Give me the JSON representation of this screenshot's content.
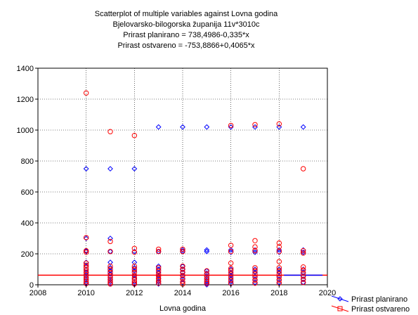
{
  "chart_data": {
    "type": "scatter",
    "title": "Scatterplot of multiple variables against Lovna godina",
    "subtitle": "Bjelovarsko-bilogorska županija 11v*3010c",
    "equations": [
      "Prirast planirano = 738,4986-0,335*x",
      "Prirast ostvareno = -753,8866+0,4065*x"
    ],
    "xlabel": "Lovna godina",
    "ylabel": "",
    "xlim": [
      2008,
      2020
    ],
    "ylim": [
      0,
      1400
    ],
    "x_ticks": [
      2008,
      2010,
      2012,
      2014,
      2016,
      2018,
      2020
    ],
    "y_ticks": [
      0,
      200,
      400,
      600,
      800,
      1000,
      1200,
      1400
    ],
    "grid": true,
    "legend_position": "bottom-right outside",
    "series": [
      {
        "name": "Prirast planirano",
        "color": "#0000ff",
        "marker": "diamond",
        "points": [
          [
            2010,
            750
          ],
          [
            2010,
            300
          ],
          [
            2010,
            220
          ],
          [
            2010,
            215
          ],
          [
            2010,
            145
          ],
          [
            2010,
            120
          ],
          [
            2010,
            100
          ],
          [
            2010,
            80
          ],
          [
            2010,
            60
          ],
          [
            2010,
            45
          ],
          [
            2010,
            30
          ],
          [
            2010,
            15
          ],
          [
            2010,
            5
          ],
          [
            2011,
            750
          ],
          [
            2011,
            300
          ],
          [
            2011,
            215
          ],
          [
            2011,
            145
          ],
          [
            2011,
            110
          ],
          [
            2011,
            90
          ],
          [
            2011,
            70
          ],
          [
            2011,
            50
          ],
          [
            2011,
            35
          ],
          [
            2011,
            20
          ],
          [
            2011,
            8
          ],
          [
            2012,
            750
          ],
          [
            2012,
            215
          ],
          [
            2012,
            145
          ],
          [
            2012,
            110
          ],
          [
            2012,
            90
          ],
          [
            2012,
            60
          ],
          [
            2012,
            40
          ],
          [
            2012,
            20
          ],
          [
            2012,
            5
          ],
          [
            2013,
            1020
          ],
          [
            2013,
            215
          ],
          [
            2013,
            120
          ],
          [
            2013,
            100
          ],
          [
            2013,
            80
          ],
          [
            2013,
            60
          ],
          [
            2013,
            40
          ],
          [
            2013,
            20
          ],
          [
            2013,
            5
          ],
          [
            2014,
            1020
          ],
          [
            2014,
            225
          ],
          [
            2014,
            215
          ],
          [
            2014,
            120
          ],
          [
            2014,
            100
          ],
          [
            2014,
            80
          ],
          [
            2014,
            55
          ],
          [
            2014,
            35
          ],
          [
            2014,
            15
          ],
          [
            2015,
            1020
          ],
          [
            2015,
            225
          ],
          [
            2015,
            215
          ],
          [
            2015,
            90
          ],
          [
            2015,
            75
          ],
          [
            2015,
            55
          ],
          [
            2015,
            40
          ],
          [
            2015,
            25
          ],
          [
            2015,
            10
          ],
          [
            2015,
            0
          ],
          [
            2016,
            1020
          ],
          [
            2016,
            225
          ],
          [
            2016,
            210
          ],
          [
            2016,
            100
          ],
          [
            2016,
            80
          ],
          [
            2016,
            60
          ],
          [
            2016,
            40
          ],
          [
            2016,
            20
          ],
          [
            2016,
            5
          ],
          [
            2017,
            1020
          ],
          [
            2017,
            225
          ],
          [
            2017,
            210
          ],
          [
            2017,
            100
          ],
          [
            2017,
            80
          ],
          [
            2017,
            55
          ],
          [
            2017,
            35
          ],
          [
            2017,
            15
          ],
          [
            2018,
            1020
          ],
          [
            2018,
            225
          ],
          [
            2018,
            210
          ],
          [
            2018,
            100
          ],
          [
            2018,
            80
          ],
          [
            2018,
            55
          ],
          [
            2018,
            35
          ],
          [
            2018,
            15
          ],
          [
            2019,
            1020
          ],
          [
            2019,
            225
          ],
          [
            2019,
            210
          ],
          [
            2019,
            100
          ],
          [
            2019,
            80
          ],
          [
            2019,
            55
          ],
          [
            2019,
            35
          ],
          [
            2019,
            15
          ]
        ],
        "fit_line": [
          [
            2018.2,
            62
          ],
          [
            2019.8,
            62
          ]
        ]
      },
      {
        "name": "Prirast ostvareno",
        "color": "#ff0000",
        "marker": "circle",
        "points": [
          [
            2010,
            1240
          ],
          [
            2010,
            305
          ],
          [
            2010,
            220
          ],
          [
            2010,
            210
          ],
          [
            2010,
            140
          ],
          [
            2010,
            125
          ],
          [
            2010,
            110
          ],
          [
            2010,
            95
          ],
          [
            2010,
            80
          ],
          [
            2010,
            65
          ],
          [
            2010,
            50
          ],
          [
            2010,
            35
          ],
          [
            2010,
            20
          ],
          [
            2010,
            8
          ],
          [
            2011,
            990
          ],
          [
            2011,
            280
          ],
          [
            2011,
            215
          ],
          [
            2011,
            120
          ],
          [
            2011,
            100
          ],
          [
            2011,
            80
          ],
          [
            2011,
            60
          ],
          [
            2011,
            45
          ],
          [
            2011,
            30
          ],
          [
            2011,
            15
          ],
          [
            2011,
            5
          ],
          [
            2012,
            965
          ],
          [
            2012,
            235
          ],
          [
            2012,
            210
          ],
          [
            2012,
            120
          ],
          [
            2012,
            100
          ],
          [
            2012,
            80
          ],
          [
            2012,
            60
          ],
          [
            2012,
            45
          ],
          [
            2012,
            30
          ],
          [
            2012,
            15
          ],
          [
            2012,
            5
          ],
          [
            2013,
            230
          ],
          [
            2013,
            215
          ],
          [
            2013,
            110
          ],
          [
            2013,
            90
          ],
          [
            2013,
            70
          ],
          [
            2013,
            55
          ],
          [
            2013,
            40
          ],
          [
            2013,
            25
          ],
          [
            2013,
            10
          ],
          [
            2014,
            230
          ],
          [
            2014,
            215
          ],
          [
            2014,
            120
          ],
          [
            2014,
            100
          ],
          [
            2014,
            80
          ],
          [
            2014,
            60
          ],
          [
            2014,
            40
          ],
          [
            2014,
            20
          ],
          [
            2014,
            5
          ],
          [
            2015,
            90
          ],
          [
            2015,
            70
          ],
          [
            2015,
            50
          ],
          [
            2015,
            35
          ],
          [
            2015,
            20
          ],
          [
            2015,
            8
          ],
          [
            2016,
            1030
          ],
          [
            2016,
            255
          ],
          [
            2016,
            215
          ],
          [
            2016,
            140
          ],
          [
            2016,
            105
          ],
          [
            2016,
            90
          ],
          [
            2016,
            70
          ],
          [
            2016,
            50
          ],
          [
            2016,
            30
          ],
          [
            2016,
            10
          ],
          [
            2017,
            1035
          ],
          [
            2017,
            285
          ],
          [
            2017,
            245
          ],
          [
            2017,
            220
          ],
          [
            2017,
            110
          ],
          [
            2017,
            90
          ],
          [
            2017,
            70
          ],
          [
            2017,
            50
          ],
          [
            2017,
            30
          ],
          [
            2017,
            10
          ],
          [
            2018,
            1040
          ],
          [
            2018,
            270
          ],
          [
            2018,
            245
          ],
          [
            2018,
            215
          ],
          [
            2018,
            150
          ],
          [
            2018,
            110
          ],
          [
            2018,
            90
          ],
          [
            2018,
            70
          ],
          [
            2018,
            50
          ],
          [
            2018,
            30
          ],
          [
            2018,
            10
          ],
          [
            2019,
            750
          ],
          [
            2019,
            220
          ],
          [
            2019,
            205
          ],
          [
            2019,
            115
          ],
          [
            2019,
            95
          ],
          [
            2019,
            75
          ],
          [
            2019,
            55
          ],
          [
            2019,
            35
          ],
          [
            2019,
            15
          ]
        ],
        "fit_line": [
          [
            2008,
            62
          ],
          [
            2020,
            62
          ]
        ]
      }
    ]
  }
}
